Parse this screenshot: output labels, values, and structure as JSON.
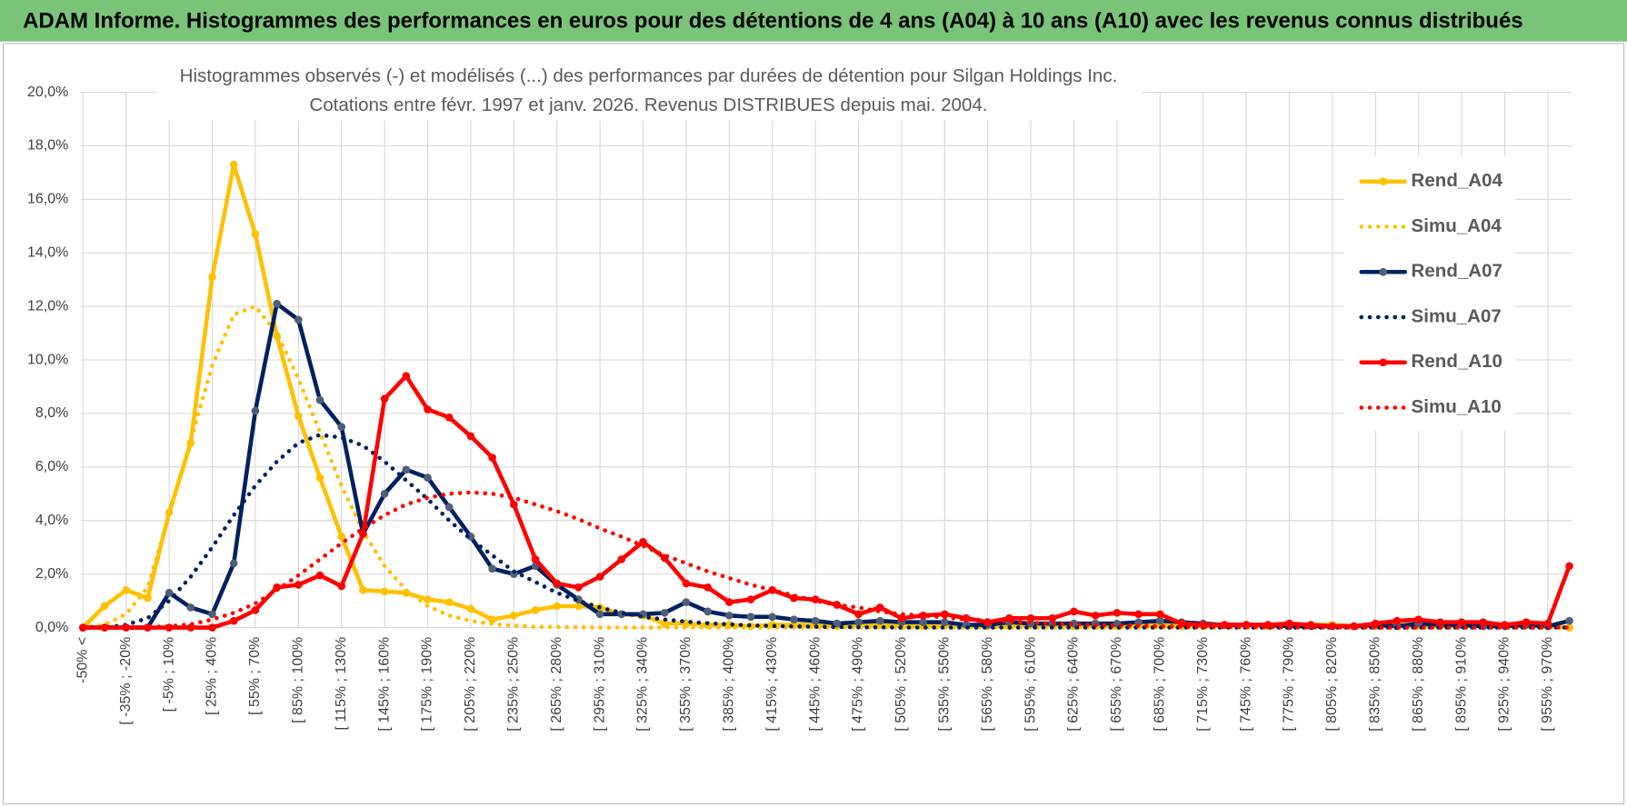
{
  "header": {
    "title": "ADAM Informe. Histogrammes des performances en euros pour des détentions de 4 ans (A04) à 10 ans (A10) avec les revenus connus distribués"
  },
  "chart_data": {
    "type": "line",
    "title": "Histogrammes observés (-) et modélisés (...) des performances par durées de détention pour Silgan Holdings Inc.",
    "subtitle": "Cotations entre févr. 1997 et janv. 2026. Revenus DISTRIBUES depuis mai. 2004.",
    "categories": [
      "-50% <",
      null,
      "[ -35% ; -20%",
      null,
      "[ -5% ; 10%",
      null,
      "[ 25% ; 40%",
      null,
      "[ 55% ; 70%",
      null,
      "[ 85% ; 100%",
      null,
      "[ 115% ; 130%",
      null,
      "[ 145% ; 160%",
      null,
      "[ 175% ; 190%",
      null,
      "[ 205% ; 220%",
      null,
      "[ 235% ; 250%",
      null,
      "[ 265% ; 280%",
      null,
      "[ 295% ; 310%",
      null,
      "[ 325% ; 340%",
      null,
      "[ 355% ; 370%",
      null,
      "[ 385% ; 400%",
      null,
      "[ 415% ; 430%",
      null,
      "[ 445% ; 460%",
      null,
      "[ 475% ; 490%",
      null,
      "[ 505% ; 520%",
      null,
      "[ 535% ; 550%",
      null,
      "[ 565% ; 580%",
      null,
      "[ 595% ; 610%",
      null,
      "[ 625% ; 640%",
      null,
      "[ 655% ; 670%",
      null,
      "[ 685% ; 700%",
      null,
      "[ 715% ; 730%",
      null,
      "[ 745% ; 760%",
      null,
      "[ 775% ; 790%",
      null,
      "[ 805% ; 820%",
      null,
      "[ 835% ; 850%",
      null,
      "[ 865% ; 880%",
      null,
      "[ 895% ; 910%",
      null,
      "[ 925% ; 940%",
      null,
      "[ 955% ; 970%",
      null
    ],
    "ylim": [
      0,
      20
    ],
    "yticks": [
      {
        "value": 0,
        "label": "0,0%"
      },
      {
        "value": 2,
        "label": "2,0%"
      },
      {
        "value": 4,
        "label": "4,0%"
      },
      {
        "value": 6,
        "label": "6,0%"
      },
      {
        "value": 8,
        "label": "8,0%"
      },
      {
        "value": 10,
        "label": "10,0%"
      },
      {
        "value": 12,
        "label": "12,0%"
      },
      {
        "value": 14,
        "label": "14,0%"
      },
      {
        "value": 16,
        "label": "16,0%"
      },
      {
        "value": 18,
        "label": "18,0%"
      },
      {
        "value": 20,
        "label": "20,0%"
      }
    ],
    "grid": true,
    "legend": "right",
    "series": [
      {
        "name": "Rend_A04",
        "color": "#ffc000",
        "dash": "solid",
        "markers": true,
        "values": [
          0,
          0.8,
          1.4,
          1.1,
          4.3,
          6.9,
          13.1,
          17.3,
          14.7,
          10.9,
          7.9,
          5.6,
          3.4,
          1.4,
          1.35,
          1.3,
          1.05,
          0.95,
          0.7,
          0.3,
          0.45,
          0.65,
          0.8,
          0.8,
          0.75,
          0.5,
          0.45,
          0.15,
          0.15,
          0.1,
          0.1,
          0.05,
          0.1,
          0.1,
          0.1,
          0.05,
          0.1,
          0.1,
          0.05,
          0.05,
          0.1,
          0.1,
          0.05,
          0.05,
          0.1,
          0.1,
          0.05,
          0.05,
          0.05,
          0.1,
          0.1,
          0.05,
          0.05,
          0.1,
          0.1,
          0.05,
          0.05,
          0.1,
          0.1,
          0.05,
          0.05,
          0.1,
          0.05,
          0.05,
          0.1,
          0.05,
          0.05,
          0.1,
          0.05,
          0
        ]
      },
      {
        "name": "Simu_A04",
        "color": "#ffc000",
        "dash": "dotted",
        "markers": false,
        "values": [
          0,
          0.1,
          0.5,
          1.5,
          4.2,
          7.0,
          9.8,
          11.7,
          12.0,
          11.0,
          9.3,
          7.3,
          5.3,
          3.6,
          2.3,
          1.4,
          0.8,
          0.45,
          0.25,
          0.13,
          0.07,
          0.03,
          0.02,
          0.01,
          0,
          0,
          0,
          0,
          0,
          0,
          0,
          0,
          0,
          0,
          0,
          0,
          0,
          0,
          0,
          0,
          0,
          0,
          0,
          0,
          0,
          0,
          0,
          0,
          0,
          0,
          0,
          0,
          0,
          0,
          0,
          0,
          0,
          0,
          0,
          0,
          0,
          0,
          0,
          0,
          0,
          0,
          0,
          0,
          0,
          0
        ]
      },
      {
        "name": "Rend_A07",
        "color": "#002060",
        "marker_color": "#4f5f78",
        "dash": "solid",
        "markers": true,
        "values": [
          0,
          0,
          0,
          0,
          1.3,
          0.75,
          0.5,
          2.4,
          8.1,
          12.1,
          11.5,
          8.5,
          7.5,
          3.5,
          5.0,
          5.9,
          5.6,
          4.5,
          3.4,
          2.2,
          2.0,
          2.3,
          1.6,
          1.05,
          0.5,
          0.5,
          0.5,
          0.55,
          0.95,
          0.6,
          0.45,
          0.4,
          0.4,
          0.3,
          0.25,
          0.15,
          0.2,
          0.25,
          0.2,
          0.2,
          0.2,
          0.1,
          0.1,
          0.2,
          0.15,
          0.15,
          0.15,
          0.15,
          0.15,
          0.2,
          0.25,
          0.2,
          0.15,
          0.1,
          0.1,
          0.1,
          0.05,
          0.05,
          0.05,
          0.05,
          0.1,
          0.05,
          0.15,
          0.1,
          0.1,
          0.05,
          0.05,
          0.1,
          0.05,
          0.25
        ]
      },
      {
        "name": "Simu_A07",
        "color": "#002060",
        "dash": "dotted",
        "markers": false,
        "values": [
          0,
          0,
          0.1,
          0.35,
          1.0,
          1.9,
          3.0,
          4.2,
          5.3,
          6.2,
          6.9,
          7.2,
          7.1,
          6.8,
          6.2,
          5.5,
          4.8,
          4.0,
          3.3,
          2.7,
          2.1,
          1.7,
          1.3,
          1.0,
          0.75,
          0.55,
          0.4,
          0.3,
          0.22,
          0.16,
          0.12,
          0.08,
          0.06,
          0.04,
          0.03,
          0.02,
          0.01,
          0.01,
          0,
          0,
          0,
          0,
          0,
          0,
          0,
          0,
          0,
          0,
          0,
          0,
          0,
          0,
          0,
          0,
          0,
          0,
          0,
          0,
          0,
          0,
          0,
          0,
          0,
          0,
          0,
          0,
          0,
          0,
          0,
          0
        ]
      },
      {
        "name": "Rend_A10",
        "color": "#ff0000",
        "dash": "solid",
        "markers": true,
        "values": [
          0,
          0,
          0,
          0,
          0,
          0,
          0,
          0.25,
          0.65,
          1.5,
          1.6,
          1.95,
          1.55,
          3.5,
          8.55,
          9.4,
          8.15,
          7.85,
          7.15,
          6.35,
          4.6,
          2.55,
          1.65,
          1.5,
          1.9,
          2.55,
          3.2,
          2.6,
          1.65,
          1.5,
          0.95,
          1.05,
          1.4,
          1.1,
          1.05,
          0.85,
          0.5,
          0.75,
          0.35,
          0.45,
          0.5,
          0.35,
          0.2,
          0.35,
          0.35,
          0.35,
          0.6,
          0.45,
          0.55,
          0.5,
          0.5,
          0.15,
          0.1,
          0.1,
          0.1,
          0.1,
          0.15,
          0.1,
          0.05,
          0.05,
          0.15,
          0.25,
          0.3,
          0.2,
          0.2,
          0.2,
          0.1,
          0.2,
          0.15,
          2.3
        ]
      },
      {
        "name": "Simu_A10",
        "color": "#ff0000",
        "dash": "dotted",
        "markers": false,
        "values": [
          0,
          0,
          0,
          0.02,
          0.05,
          0.12,
          0.3,
          0.55,
          0.9,
          1.4,
          1.95,
          2.55,
          3.15,
          3.7,
          4.2,
          4.6,
          4.85,
          5.0,
          5.05,
          5.0,
          4.85,
          4.6,
          4.35,
          4.05,
          3.7,
          3.4,
          3.05,
          2.7,
          2.4,
          2.1,
          1.85,
          1.6,
          1.4,
          1.2,
          1.0,
          0.85,
          0.75,
          0.6,
          0.5,
          0.45,
          0.38,
          0.3,
          0.27,
          0.22,
          0.18,
          0.15,
          0.12,
          0.1,
          0.08,
          0.07,
          0.05,
          0.04,
          0.03,
          0.03,
          0.02,
          0.02,
          0.01,
          0.01,
          0.01,
          0,
          0,
          0,
          0,
          0,
          0,
          0,
          0,
          0,
          0,
          0
        ]
      }
    ]
  }
}
